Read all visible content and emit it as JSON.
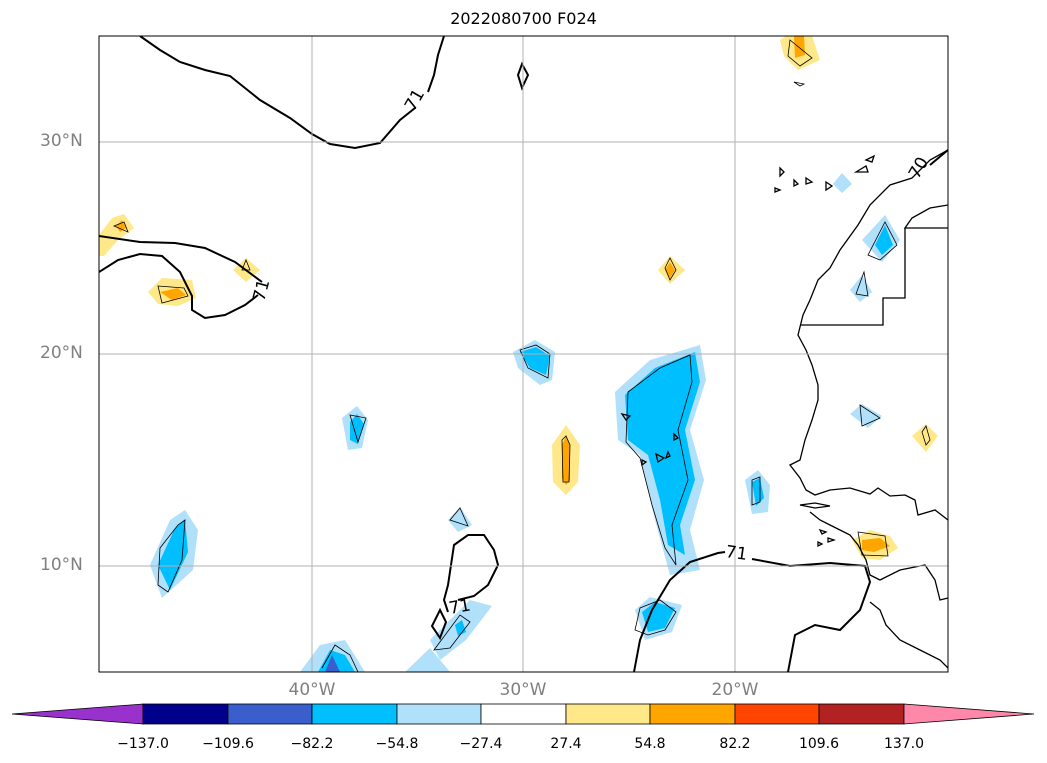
{
  "title": "2022080700 F024",
  "map": {
    "lat_labels": [
      "30°N",
      "20°N",
      "10°N"
    ],
    "lon_labels": [
      "40°W",
      "30°W",
      "20°W"
    ],
    "contour_labels": [
      "71",
      "71",
      "71",
      "71",
      "70"
    ],
    "grid": true,
    "extent": {
      "lon_min": -50,
      "lon_max": -10,
      "lat_min": 5,
      "lat_max": 35
    }
  },
  "colorbar": {
    "ticks": [
      "−137.0",
      "−109.6",
      "−82.2",
      "−54.8",
      "−27.4",
      "27.4",
      "54.8",
      "82.2",
      "109.6",
      "137.0"
    ],
    "colors": [
      "#9932cc",
      "#00008b",
      "#3a5fcd",
      "#00bfff",
      "#b0e0fa",
      "#ffffff",
      "#ffe88a",
      "#ffa500",
      "#ff4500",
      "#b22222",
      "#ff88aa"
    ],
    "extend": "both"
  }
}
